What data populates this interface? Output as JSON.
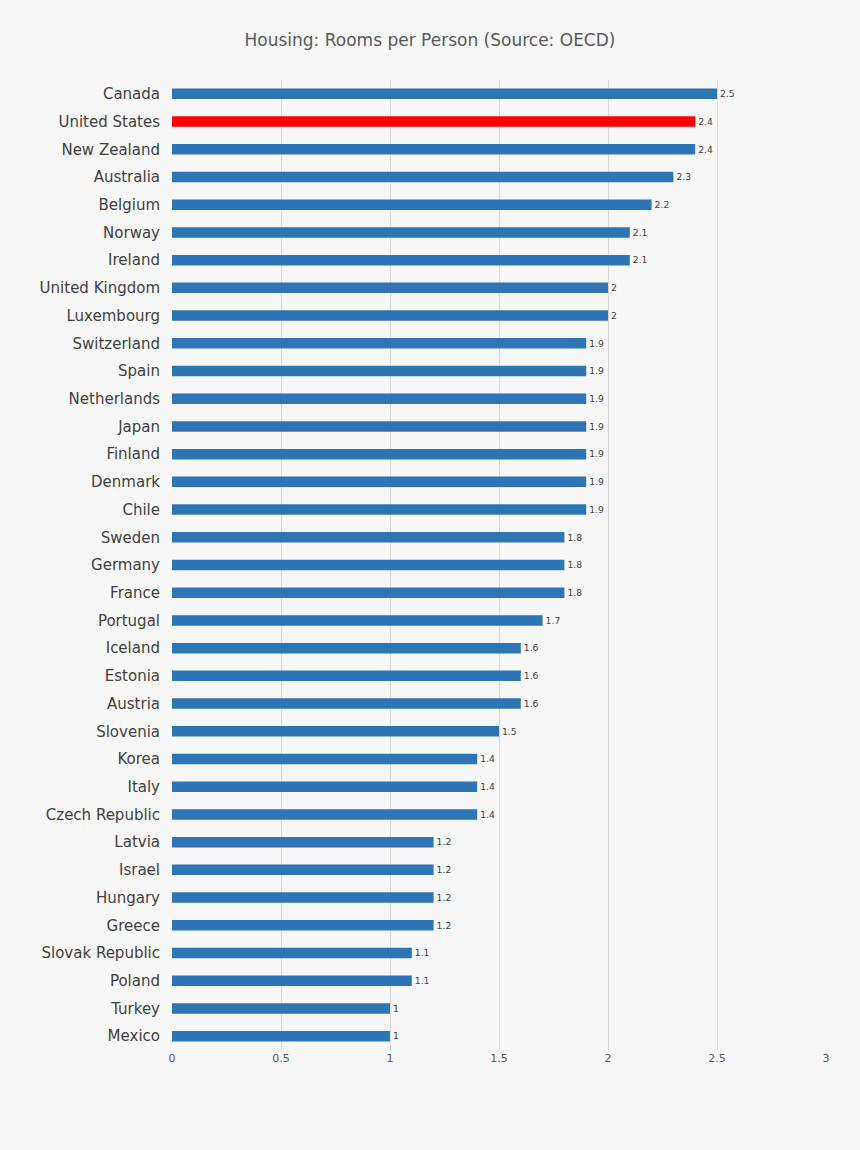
{
  "chart_data": {
    "type": "bar",
    "orientation": "horizontal",
    "title": "Housing: Rooms per Person (Source: OECD)",
    "categories": [
      "Canada",
      "United States",
      "New Zealand",
      "Australia",
      "Belgium",
      "Norway",
      "Ireland",
      "United Kingdom",
      "Luxembourg",
      "Switzerland",
      "Spain",
      "Netherlands",
      "Japan",
      "Finland",
      "Denmark",
      "Chile",
      "Sweden",
      "Germany",
      "France",
      "Portugal",
      "Iceland",
      "Estonia",
      "Austria",
      "Slovenia",
      "Korea",
      "Italy",
      "Czech Republic",
      "Latvia",
      "Israel",
      "Hungary",
      "Greece",
      "Slovak Republic",
      "Poland",
      "Turkey",
      "Mexico"
    ],
    "values": [
      2.5,
      2.4,
      2.4,
      2.3,
      2.2,
      2.1,
      2.1,
      2,
      2,
      1.9,
      1.9,
      1.9,
      1.9,
      1.9,
      1.9,
      1.9,
      1.8,
      1.8,
      1.8,
      1.7,
      1.6,
      1.6,
      1.6,
      1.5,
      1.4,
      1.4,
      1.4,
      1.2,
      1.2,
      1.2,
      1.2,
      1.1,
      1.1,
      1,
      1
    ],
    "colors": [
      "#2e75b6",
      "#ff0000",
      "#2e75b6",
      "#2e75b6",
      "#2e75b6",
      "#2e75b6",
      "#2e75b6",
      "#2e75b6",
      "#2e75b6",
      "#2e75b6",
      "#2e75b6",
      "#2e75b6",
      "#2e75b6",
      "#2e75b6",
      "#2e75b6",
      "#2e75b6",
      "#2e75b6",
      "#2e75b6",
      "#2e75b6",
      "#2e75b6",
      "#2e75b6",
      "#2e75b6",
      "#2e75b6",
      "#2e75b6",
      "#2e75b6",
      "#2e75b6",
      "#2e75b6",
      "#2e75b6",
      "#2e75b6",
      "#2e75b6",
      "#2e75b6",
      "#2e75b6",
      "#2e75b6",
      "#2e75b6",
      "#2e75b6"
    ],
    "xlim": [
      0,
      3
    ],
    "xticks": [
      0,
      0.5,
      1,
      1.5,
      2,
      2.5,
      3
    ],
    "grid": true,
    "data_labels": true
  }
}
